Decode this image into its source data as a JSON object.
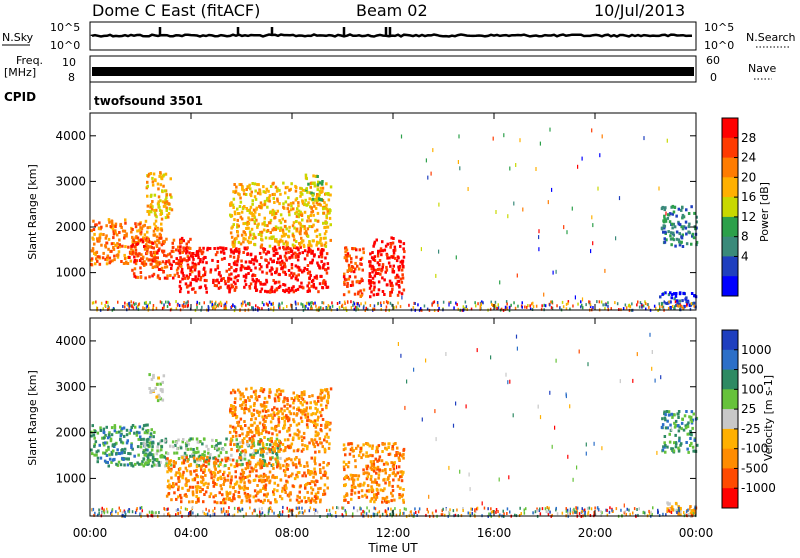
{
  "header": {
    "title": "Dome C East (fitACF)",
    "beam": "Beam 02",
    "date": "10/Jul/2013"
  },
  "status_panels": {
    "nsky_label": "N.Sky",
    "nsearch_label": "N.Search",
    "noise_ticks": [
      "10^5",
      "10^0"
    ],
    "freq_label": "Freq.",
    "freq_unit": "[MHz]",
    "freq_ticks": [
      "10",
      "8"
    ],
    "nave_label": "Nave",
    "nave_ticks": [
      "60",
      "0"
    ],
    "cpid_label": "CPID",
    "cpid_value": "twofsound 3501"
  },
  "chart_data": [
    {
      "type": "heatmap",
      "parameter": "power",
      "ylabel": "Slant Range [km]",
      "ylim": [
        180,
        4500
      ],
      "yticks": [
        1000,
        2000,
        3000,
        4000
      ],
      "xlim": [
        0,
        24
      ],
      "colorbar": {
        "label": "Power [dB]",
        "ticks": [
          "28",
          "24",
          "20",
          "16",
          "12",
          "8",
          "4"
        ],
        "colors": [
          "#ff0000",
          "#ff3a00",
          "#ff7c00",
          "#ffb000",
          "#c8d800",
          "#2ca04a",
          "#3a8a7a",
          "#1f3fbf",
          "#0000ff"
        ]
      },
      "regions": [
        {
          "t0": 0.0,
          "t1": 2.8,
          "r0": 1200,
          "r1": 2200,
          "level": 2
        },
        {
          "t0": 1.5,
          "t1": 4.0,
          "r0": 900,
          "r1": 1800,
          "level": 1
        },
        {
          "t0": 3.5,
          "t1": 9.4,
          "r0": 600,
          "r1": 1600,
          "level": 0
        },
        {
          "t0": 2.2,
          "t1": 3.2,
          "r0": 2200,
          "r1": 3250,
          "level": 3
        },
        {
          "t0": 5.5,
          "t1": 9.5,
          "r0": 1600,
          "r1": 3000,
          "level": 3
        },
        {
          "t0": 8.5,
          "t1": 9.2,
          "r0": 2600,
          "r1": 3200,
          "level": 4
        },
        {
          "t0": 10.0,
          "t1": 10.8,
          "r0": 500,
          "r1": 1600,
          "level": 1
        },
        {
          "t0": 11.0,
          "t1": 12.4,
          "r0": 500,
          "r1": 1800,
          "level": 0
        },
        {
          "t0": 22.6,
          "t1": 24.0,
          "r0": 1600,
          "r1": 2500,
          "level": 6
        },
        {
          "t0": 22.5,
          "t1": 24.0,
          "r0": 200,
          "r1": 600,
          "level": 7
        }
      ]
    },
    {
      "type": "heatmap",
      "parameter": "velocity",
      "ylabel": "Slant Range [km]",
      "xlabel": "Time UT",
      "ylim": [
        180,
        4500
      ],
      "yticks": [
        1000,
        2000,
        3000,
        4000
      ],
      "xlim": [
        0,
        24
      ],
      "xticks": [
        "00:00",
        "04:00",
        "08:00",
        "12:00",
        "16:00",
        "20:00",
        "00:00"
      ],
      "colorbar": {
        "label": "Velocity [m s-1]",
        "ticks": [
          "1000",
          "500",
          "100",
          "25",
          "-25",
          "-100",
          "-500",
          "-1000"
        ],
        "colors": [
          "#1f3fbf",
          "#2c6fc8",
          "#2e8a63",
          "#66c23a",
          "#c8c8c8",
          "#ffb000",
          "#ff8c00",
          "#ff4a00",
          "#ff0000"
        ]
      },
      "regions": [
        {
          "t0": 0.0,
          "t1": 2.5,
          "r0": 1300,
          "r1": 2200,
          "level": 2
        },
        {
          "t0": 2.0,
          "t1": 7.5,
          "r0": 1300,
          "r1": 1900,
          "level": 3
        },
        {
          "t0": 3.0,
          "t1": 9.4,
          "r0": 500,
          "r1": 1500,
          "level": 6
        },
        {
          "t0": 5.5,
          "t1": 9.5,
          "r0": 1600,
          "r1": 3000,
          "level": 6
        },
        {
          "t0": 2.3,
          "t1": 2.9,
          "r0": 2700,
          "r1": 3300,
          "level": 4
        },
        {
          "t0": 10.0,
          "t1": 12.4,
          "r0": 500,
          "r1": 1800,
          "level": 6
        },
        {
          "t0": 22.6,
          "t1": 24.0,
          "r0": 1600,
          "r1": 2500,
          "level": 2
        },
        {
          "t0": 22.8,
          "t1": 24.0,
          "r0": 200,
          "r1": 500,
          "level": 5
        }
      ]
    }
  ]
}
